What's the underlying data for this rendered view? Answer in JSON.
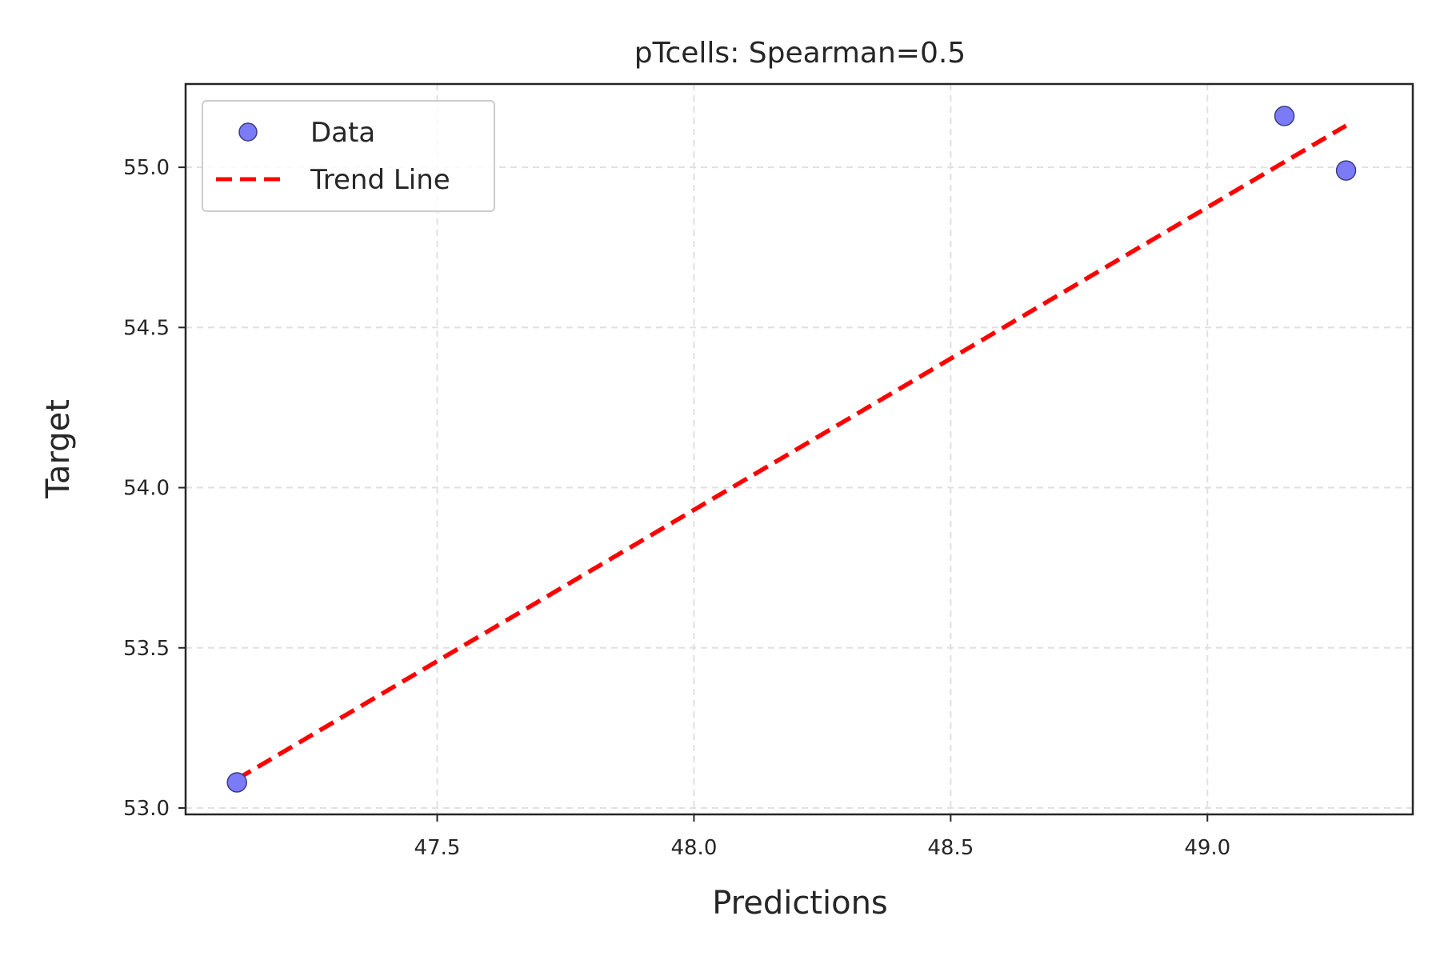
{
  "chart_data": {
    "type": "scatter",
    "title": "pTcells: Spearman=0.5",
    "xlabel": "Predictions",
    "ylabel": "Target",
    "xlim": [
      47.01,
      49.4
    ],
    "ylim": [
      52.98,
      55.26
    ],
    "xticks": [
      47.5,
      48.0,
      48.5,
      49.0
    ],
    "xtick_labels": [
      "47.5",
      "48.0",
      "48.5",
      "49.0"
    ],
    "yticks": [
      53.0,
      53.5,
      54.0,
      54.5,
      55.0
    ],
    "ytick_labels": [
      "53.0",
      "53.5",
      "54.0",
      "54.5",
      "55.0"
    ],
    "grid": true,
    "legend_position": "upper-left",
    "series": [
      {
        "name": "Data",
        "kind": "scatter",
        "color": "#7b7bf7",
        "edge_color": "#3c3c80",
        "points": [
          {
            "x": 47.11,
            "y": 53.08
          },
          {
            "x": 49.15,
            "y": 55.16
          },
          {
            "x": 49.27,
            "y": 54.99
          }
        ]
      },
      {
        "name": "Trend Line",
        "kind": "line",
        "style": "dashed",
        "color": "#ff0000",
        "points": [
          {
            "x": 47.11,
            "y": 53.09
          },
          {
            "x": 49.27,
            "y": 55.13
          }
        ]
      }
    ]
  }
}
